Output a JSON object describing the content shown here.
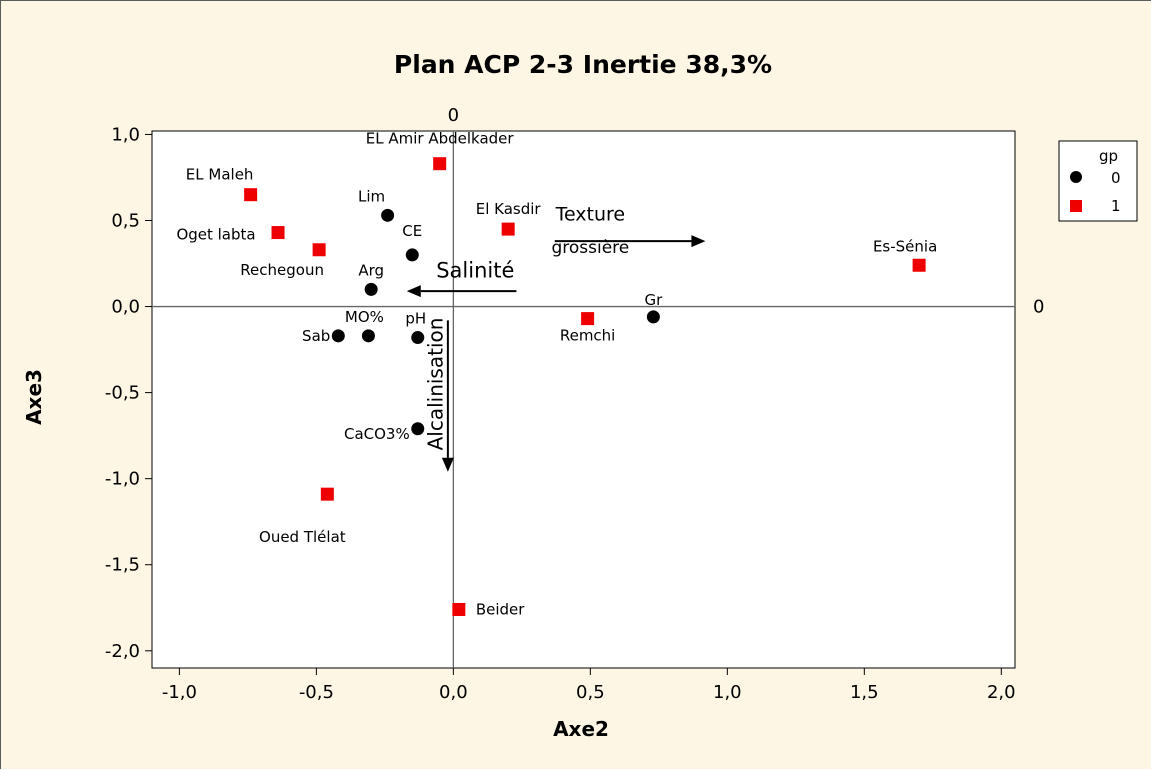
{
  "chart_data": {
    "type": "scatter",
    "title": "Plan ACP 2-3 Inertie 38,3%",
    "xlabel": "Axe2",
    "ylabel": "Axe3",
    "xlim": [
      -1.1,
      2.05
    ],
    "ylim": [
      -2.1,
      1.02
    ],
    "xticks": [
      -1.0,
      -0.5,
      0.0,
      0.5,
      1.0,
      1.5,
      2.0
    ],
    "xtick_labels": [
      "-1,0",
      "-0,5",
      "0,0",
      "0,5",
      "1,0",
      "1,5",
      "2,0"
    ],
    "yticks": [
      1.0,
      0.5,
      0.0,
      -0.5,
      -1.0,
      -1.5,
      -2.0
    ],
    "ytick_labels": [
      "1,0",
      "0,5",
      "0,0",
      "-0,5",
      "-1,0",
      "-1,5",
      "-2,0"
    ],
    "reference_lines": {
      "x": 0,
      "y": 0,
      "x_label": "0",
      "y_label": "0"
    },
    "legend": {
      "title": "gp",
      "placement": "top-right",
      "entries": [
        {
          "label": "0",
          "marker": "circle",
          "color": "#000000"
        },
        {
          "label": "1",
          "marker": "square",
          "color": "#ee0000"
        }
      ]
    },
    "series": [
      {
        "name": "0",
        "marker": "circle",
        "color": "#000000",
        "points": [
          {
            "label": "Lim",
            "x": -0.24,
            "y": 0.53
          },
          {
            "label": "CE",
            "x": -0.15,
            "y": 0.3
          },
          {
            "label": "Arg",
            "x": -0.3,
            "y": 0.1
          },
          {
            "label": "Gr",
            "x": 0.73,
            "y": -0.06
          },
          {
            "label": "Sab",
            "x": -0.42,
            "y": -0.17
          },
          {
            "label": "MO%",
            "x": -0.31,
            "y": -0.17
          },
          {
            "label": "pH",
            "x": -0.13,
            "y": -0.18
          },
          {
            "label": "CaCO3%",
            "x": -0.13,
            "y": -0.71
          }
        ]
      },
      {
        "name": "1",
        "marker": "square",
        "color": "#ee0000",
        "points": [
          {
            "label": "EL Amir Abdelkader",
            "x": -0.05,
            "y": 0.83
          },
          {
            "label": "EL Maleh",
            "x": -0.74,
            "y": 0.65
          },
          {
            "label": "Oget labta",
            "x": -0.64,
            "y": 0.43
          },
          {
            "label": "Rechegoun",
            "x": -0.49,
            "y": 0.33
          },
          {
            "label": "El Kasdir",
            "x": 0.2,
            "y": 0.45
          },
          {
            "label": "Es-Sénia",
            "x": 1.7,
            "y": 0.24
          },
          {
            "label": "Remchi",
            "x": 0.49,
            "y": -0.07
          },
          {
            "label": "Oued Tlélat",
            "x": -0.46,
            "y": -1.09
          },
          {
            "label": "Beider",
            "x": 0.02,
            "y": -1.76
          }
        ]
      }
    ],
    "annotations": [
      {
        "text": "Texture",
        "x": 0.5,
        "y": 0.5
      },
      {
        "text": "grossière",
        "x": 0.5,
        "y": 0.31
      },
      {
        "text": "Salinité",
        "x": 0.08,
        "y": 0.17
      },
      {
        "text": "Alcalinisation",
        "x": -0.04,
        "y": -0.45
      }
    ],
    "arrows": [
      {
        "name": "texture-arrow",
        "from": [
          0.37,
          0.38
        ],
        "to": [
          0.92,
          0.38
        ]
      },
      {
        "name": "salinite-arrow",
        "from": [
          0.23,
          0.09
        ],
        "to": [
          -0.17,
          0.09
        ]
      },
      {
        "name": "alcalinisation-arrow",
        "from": [
          -0.02,
          -0.08
        ],
        "to": [
          -0.02,
          -0.96
        ]
      }
    ]
  }
}
